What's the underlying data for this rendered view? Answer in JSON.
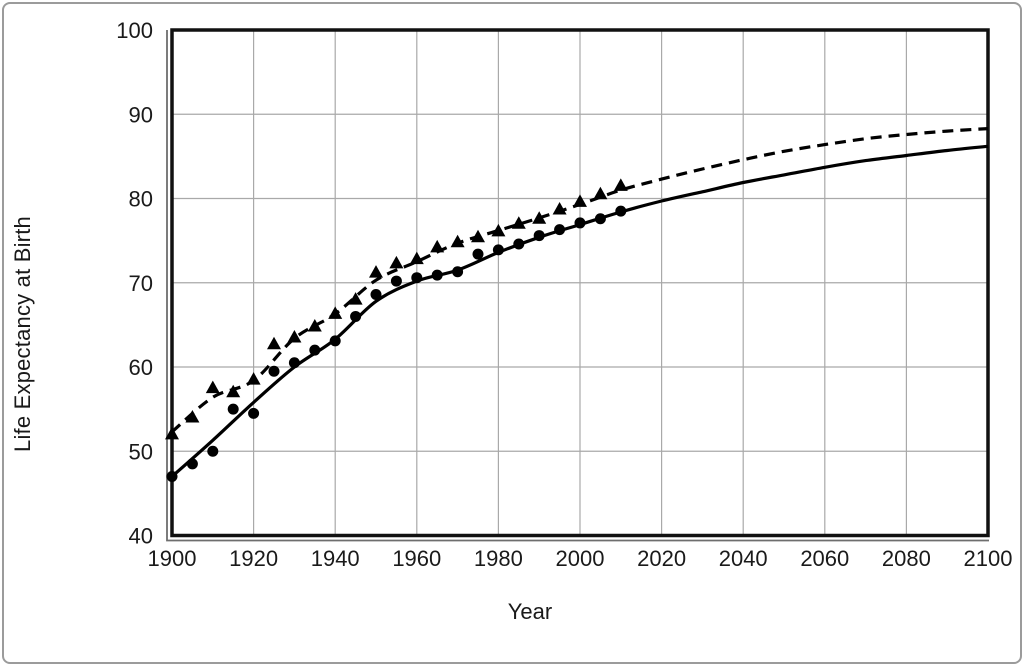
{
  "figure": {
    "background_color": "#ffffff",
    "outer_border_color": "#9b9b9b",
    "plot_border_color": "#111111",
    "plot_shadow_color": "#6e6e6e",
    "gridline_color": "#a9a9a9",
    "text_color": "#1a1a1a",
    "series_color": "#000000"
  },
  "chart_data": {
    "type": "line",
    "title": "",
    "xlabel": "Year",
    "ylabel": "Life Expectancy at Birth",
    "xlim": [
      1900,
      2100
    ],
    "ylim": [
      40,
      100
    ],
    "x_ticks": [
      1900,
      1920,
      1940,
      1960,
      1980,
      2000,
      2020,
      2040,
      2060,
      2080,
      2100
    ],
    "y_ticks": [
      40,
      50,
      60,
      70,
      80,
      90,
      100
    ],
    "grid": true,
    "legend": "none",
    "series": [
      {
        "name": "observed-upper-series-triangle-markers",
        "kind": "scatter",
        "marker": "triangle",
        "color": "#000000",
        "x": [
          1900,
          1905,
          1910,
          1915,
          1920,
          1925,
          1930,
          1935,
          1940,
          1945,
          1950,
          1955,
          1960,
          1965,
          1970,
          1975,
          1980,
          1985,
          1990,
          1995,
          2000,
          2005,
          2010
        ],
        "y": [
          52.0,
          54.0,
          57.5,
          57.0,
          58.5,
          62.7,
          63.5,
          64.8,
          66.3,
          68.0,
          71.2,
          72.3,
          72.8,
          74.2,
          74.8,
          75.4,
          76.1,
          77.0,
          77.6,
          78.7,
          79.6,
          80.5,
          81.5
        ]
      },
      {
        "name": "observed-lower-series-circle-markers",
        "kind": "scatter",
        "marker": "circle",
        "color": "#000000",
        "x": [
          1900,
          1905,
          1910,
          1915,
          1920,
          1925,
          1930,
          1935,
          1940,
          1945,
          1950,
          1955,
          1960,
          1965,
          1970,
          1975,
          1980,
          1985,
          1990,
          1995,
          2000,
          2005,
          2010
        ],
        "y": [
          47.0,
          48.5,
          50.0,
          55.0,
          54.5,
          59.5,
          60.5,
          62.0,
          63.1,
          66.0,
          68.6,
          70.2,
          70.6,
          70.9,
          71.3,
          73.4,
          73.9,
          74.6,
          75.6,
          76.3,
          77.1,
          77.6,
          78.5
        ]
      },
      {
        "name": "fitted-projected-upper-curve-dashed",
        "kind": "line",
        "line_style": "dashed",
        "color": "#000000",
        "x": [
          1900,
          1910,
          1920,
          1930,
          1940,
          1950,
          1960,
          1970,
          1980,
          1990,
          2000,
          2010,
          2020,
          2030,
          2040,
          2050,
          2060,
          2070,
          2080,
          2090,
          2100
        ],
        "y": [
          52.3,
          56.4,
          58.4,
          63.4,
          66.3,
          70.3,
          72.5,
          74.7,
          76.2,
          77.7,
          79.3,
          81.0,
          82.3,
          83.5,
          84.6,
          85.6,
          86.4,
          87.1,
          87.6,
          88.0,
          88.3
        ]
      },
      {
        "name": "fitted-projected-lower-curve-solid",
        "kind": "line",
        "line_style": "solid",
        "color": "#000000",
        "x": [
          1900,
          1910,
          1920,
          1930,
          1940,
          1950,
          1960,
          1970,
          1980,
          1990,
          2000,
          2010,
          2020,
          2030,
          2040,
          2050,
          2060,
          2070,
          2080,
          2090,
          2100
        ],
        "y": [
          47.0,
          51.3,
          55.8,
          60.0,
          63.3,
          67.8,
          70.2,
          71.5,
          73.6,
          75.4,
          76.9,
          78.4,
          79.7,
          80.8,
          81.9,
          82.8,
          83.7,
          84.5,
          85.1,
          85.7,
          86.2
        ]
      }
    ]
  }
}
